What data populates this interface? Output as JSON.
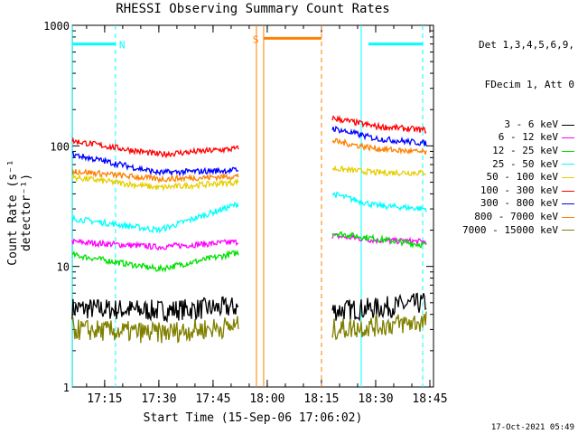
{
  "chart_data": {
    "type": "line",
    "title": "RHESSI Observing Summary Count Rates",
    "xlabel": "Start Time (15-Sep-06 17:06:02)",
    "ylabel": "Count Rate (s⁻¹ detector⁻¹)",
    "yscale": "log",
    "ylim": [
      1,
      1000
    ],
    "xlim": [
      "17:06:02",
      "18:46"
    ],
    "x_ticks": [
      "17:15",
      "17:30",
      "17:45",
      "18:00",
      "18:15",
      "18:30",
      "18:45"
    ],
    "y_ticks": [
      "1",
      "10",
      "100",
      "1000"
    ],
    "legend_header": [
      "Det 1,3,4,5,6,9,",
      "FDecim 1, Att 0"
    ],
    "legend_placement": "right",
    "grid": false,
    "series": [
      {
        "name": "3 - 6 keV",
        "color": "#000000",
        "segments": [
          {
            "x": [
              "17:06",
              "17:30",
              "17:52"
            ],
            "y": [
              4.5,
              4.3,
              4.6
            ]
          },
          {
            "x": [
              "18:18",
              "18:30",
              "18:44"
            ],
            "y": [
              4.3,
              4.5,
              5.0
            ]
          }
        ]
      },
      {
        "name": "6 - 12 keV",
        "color": "#ff00ff",
        "segments": [
          {
            "x": [
              "17:06",
              "17:30",
              "17:52"
            ],
            "y": [
              16,
              14.5,
              16
            ]
          },
          {
            "x": [
              "18:18",
              "18:30",
              "18:44"
            ],
            "y": [
              18,
              16.5,
              16
            ]
          }
        ]
      },
      {
        "name": "12 - 25 keV",
        "color": "#00e000",
        "segments": [
          {
            "x": [
              "17:06",
              "17:30",
              "17:52"
            ],
            "y": [
              12.5,
              9.5,
              13
            ]
          },
          {
            "x": [
              "18:18",
              "18:30",
              "18:44"
            ],
            "y": [
              19,
              17,
              15
            ]
          }
        ]
      },
      {
        "name": "25 - 50 keV",
        "color": "#00ffff",
        "segments": [
          {
            "x": [
              "17:06",
              "17:30",
              "17:52"
            ],
            "y": [
              25,
              20,
              33
            ]
          },
          {
            "x": [
              "18:18",
              "18:30",
              "18:44"
            ],
            "y": [
              40,
              32,
              30
            ]
          }
        ]
      },
      {
        "name": "50 - 100 keV",
        "color": "#e6cf00",
        "segments": [
          {
            "x": [
              "17:06",
              "17:30",
              "17:52"
            ],
            "y": [
              55,
              45,
              50
            ]
          },
          {
            "x": [
              "18:18",
              "18:30",
              "18:44"
            ],
            "y": [
              65,
              60,
              60
            ]
          }
        ]
      },
      {
        "name": "100 - 300 keV",
        "color": "#ff0000",
        "segments": [
          {
            "x": [
              "17:06",
              "17:30",
              "17:52"
            ],
            "y": [
              110,
              85,
              95
            ]
          },
          {
            "x": [
              "18:18",
              "18:30",
              "18:44"
            ],
            "y": [
              170,
              145,
              135
            ]
          }
        ]
      },
      {
        "name": "300 - 800 keV",
        "color": "#0000ff",
        "segments": [
          {
            "x": [
              "17:06",
              "17:30",
              "17:52"
            ],
            "y": [
              85,
              60,
              63
            ]
          },
          {
            "x": [
              "18:18",
              "18:30",
              "18:44"
            ],
            "y": [
              140,
              115,
              105
            ]
          }
        ]
      },
      {
        "name": "800 - 7000 keV",
        "color": "#ff8000",
        "segments": [
          {
            "x": [
              "17:06",
              "17:30",
              "17:52"
            ],
            "y": [
              62,
              53,
              56
            ]
          },
          {
            "x": [
              "18:18",
              "18:30",
              "18:44"
            ],
            "y": [
              110,
              95,
              88
            ]
          }
        ]
      },
      {
        "name": "7000 - 15000 keV",
        "color": "#808000",
        "segments": [
          {
            "x": [
              "17:06",
              "17:30",
              "17:52"
            ],
            "y": [
              3.0,
              2.8,
              3.2
            ]
          },
          {
            "x": [
              "18:18",
              "18:30",
              "18:44"
            ],
            "y": [
              3.0,
              3.2,
              3.5
            ]
          }
        ]
      }
    ],
    "annotations": [
      {
        "label": "N",
        "color": "#00ffff",
        "bars": [
          [
            "17:06",
            "17:18"
          ],
          [
            "18:28",
            "18:43"
          ]
        ],
        "y": 700
      },
      {
        "label": "S",
        "color": "#ff8000",
        "bars": [
          [
            "17:59",
            "18:15"
          ]
        ],
        "y": 780
      }
    ],
    "vlines": [
      {
        "x": "17:06",
        "color": "#00ffff",
        "style": "solid"
      },
      {
        "x": "17:18",
        "color": "#00ffff",
        "style": "dashed"
      },
      {
        "x": "17:57",
        "color": "#ff8000",
        "style": "solid"
      },
      {
        "x": "17:59",
        "color": "#ff8000",
        "style": "solid"
      },
      {
        "x": "18:15",
        "color": "#ff8000",
        "style": "dashed"
      },
      {
        "x": "18:26",
        "color": "#00ffff",
        "style": "solid"
      },
      {
        "x": "18:43",
        "color": "#00ffff",
        "style": "dashed"
      }
    ]
  },
  "footer": "17-Oct-2021 05:49"
}
